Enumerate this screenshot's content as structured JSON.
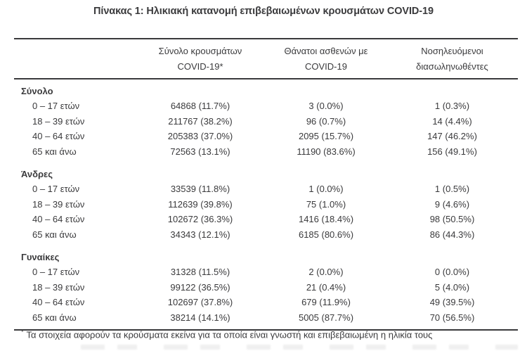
{
  "title": "Πίνακας 1: Ηλικιακή κατανομή επιβεβαιωμένων κρουσμάτων COVID-19",
  "table": {
    "columns": [
      {
        "line1": "Σύνολο κρουσμάτων",
        "line2": "COVID-19*"
      },
      {
        "line1": "Θάνατοι ασθενών με",
        "line2": "COVID-19"
      },
      {
        "line1": "Νοσηλευόμενοι",
        "line2": "διασωληνωθέντες"
      }
    ],
    "sections": [
      {
        "label": "Σύνολο",
        "rows": [
          {
            "age": "0 – 17 ετών",
            "cases": "64868 (11.7%)",
            "deaths": "3 (0.0%)",
            "intubated": "1 (0.3%)"
          },
          {
            "age": "18 – 39 ετών",
            "cases": "211767 (38.2%)",
            "deaths": "96 (0.7%)",
            "intubated": "14 (4.4%)"
          },
          {
            "age": "40 – 64 ετών",
            "cases": "205383 (37.0%)",
            "deaths": "2095 (15.7%)",
            "intubated": "147 (46.2%)"
          },
          {
            "age": "65 και άνω",
            "cases": "72563 (13.1%)",
            "deaths": "11190 (83.6%)",
            "intubated": "156 (49.1%)"
          }
        ]
      },
      {
        "label": "Άνδρες",
        "rows": [
          {
            "age": "0 – 17 ετών",
            "cases": "33539 (11.8%)",
            "deaths": "1 (0.0%)",
            "intubated": "1 (0.5%)"
          },
          {
            "age": "18 – 39 ετών",
            "cases": "112639 (39.8%)",
            "deaths": "75 (1.0%)",
            "intubated": "9 (4.6%)"
          },
          {
            "age": "40 – 64 ετών",
            "cases": "102672 (36.3%)",
            "deaths": "1416 (18.4%)",
            "intubated": "98 (50.5%)"
          },
          {
            "age": "65 και άνω",
            "cases": "34343 (12.1%)",
            "deaths": "6185 (80.6%)",
            "intubated": "86 (44.3%)"
          }
        ]
      },
      {
        "label": "Γυναίκες",
        "rows": [
          {
            "age": "0 – 17 ετών",
            "cases": "31328 (11.5%)",
            "deaths": "2 (0.0%)",
            "intubated": "0 (0.0%)"
          },
          {
            "age": "18 – 39 ετών",
            "cases": "99122 (36.5%)",
            "deaths": "21 (0.4%)",
            "intubated": "5 (4.0%)"
          },
          {
            "age": "40 – 64 ετών",
            "cases": "102697 (37.8%)",
            "deaths": "679 (11.9%)",
            "intubated": "49 (39.5%)"
          },
          {
            "age": "65 και άνω",
            "cases": "38214 (14.1%)",
            "deaths": "5005 (87.7%)",
            "intubated": "70 (56.5%)"
          }
        ]
      }
    ],
    "footnote_marker": "*",
    "footnote": "Τα στοιχεία αφορούν τα κρούσματα εκείνα για τα οποία είναι γνωστή και επιβεβαιωμένη η ηλικία τους"
  },
  "colors": {
    "text": "#3a3a3c",
    "rule": "#3a3a3c",
    "background": "#ffffff"
  }
}
